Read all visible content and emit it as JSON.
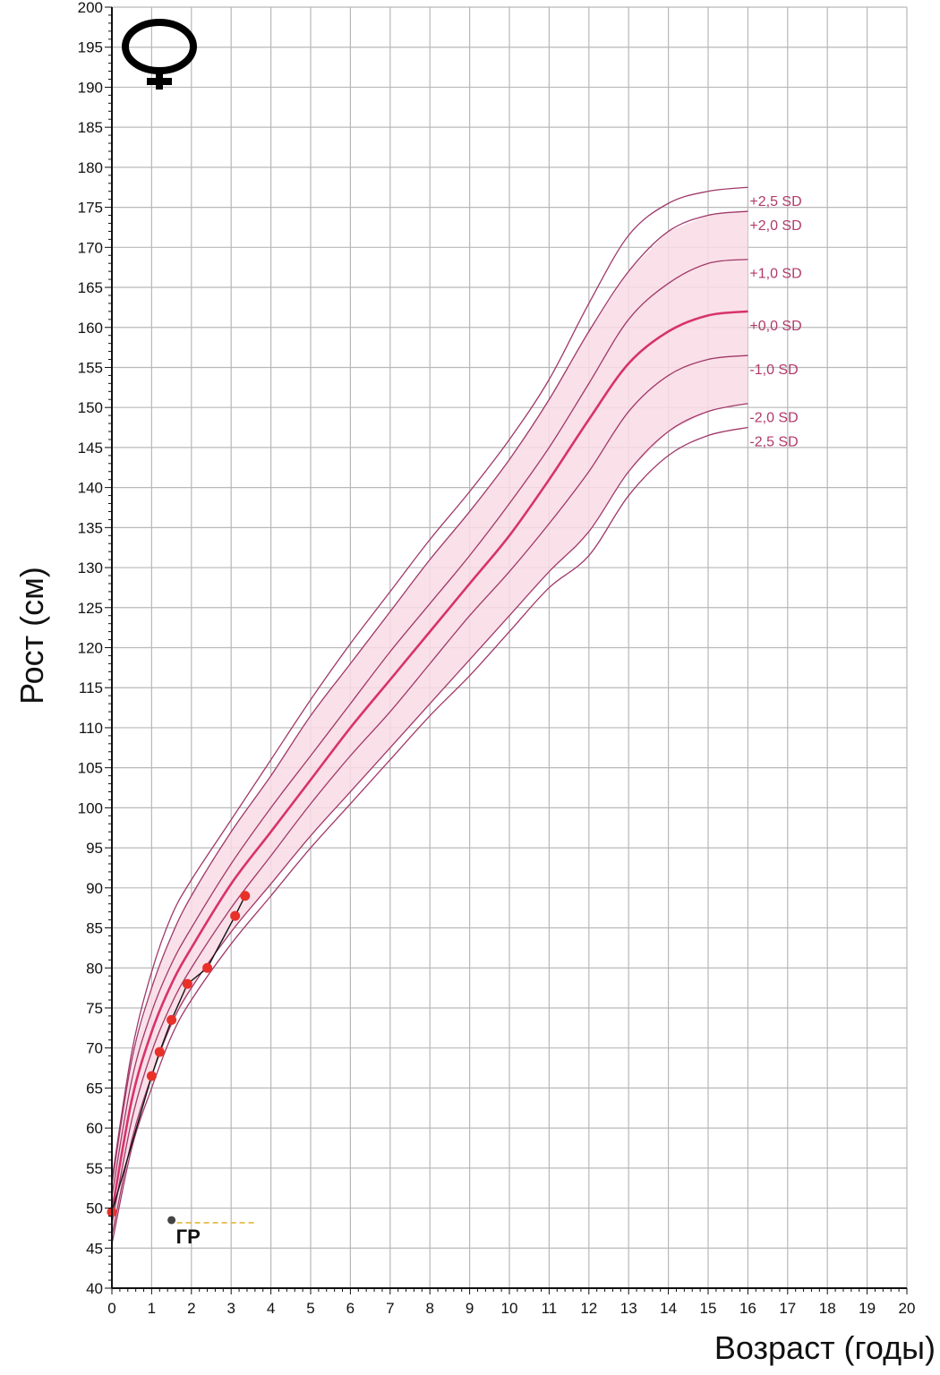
{
  "chart_data": {
    "type": "line",
    "title": "",
    "sex_symbol": "female-symbol",
    "xlabel": "Возраст (годы)",
    "ylabel": "Рост (см)",
    "xlim": [
      0,
      20
    ],
    "ylim": [
      40,
      200
    ],
    "x_ticks": [
      "0",
      "1",
      "2",
      "3",
      "4",
      "5",
      "6",
      "7",
      "8",
      "9",
      "10",
      "11",
      "12",
      "13",
      "14",
      "15",
      "16",
      "17",
      "18",
      "19",
      "20"
    ],
    "y_ticks": [
      "40",
      "45",
      "50",
      "55",
      "60",
      "65",
      "70",
      "75",
      "80",
      "85",
      "90",
      "95",
      "100",
      "105",
      "110",
      "115",
      "120",
      "125",
      "130",
      "135",
      "140",
      "145",
      "150",
      "155",
      "160",
      "165",
      "170",
      "175",
      "180",
      "185",
      "190",
      "195",
      "200"
    ],
    "grid": true,
    "band": {
      "from_series": "-2,0 SD",
      "to_series": "+2,0 SD",
      "color": "#f9dbe4"
    },
    "series": [
      {
        "name": "+2,5 SD",
        "color": "#a0386a",
        "width": 1.3,
        "x": [
          0,
          0.5,
          1,
          1.5,
          2,
          3,
          4,
          5,
          6,
          7,
          8,
          9,
          10,
          11,
          12,
          13,
          14,
          15,
          16
        ],
        "y": [
          53.5,
          69.5,
          79.5,
          86.5,
          91,
          98.5,
          106,
          113.5,
          120.5,
          127,
          133.5,
          139.5,
          146,
          153.5,
          163,
          171.5,
          175.5,
          177,
          177.5
        ]
      },
      {
        "name": "+2,0 SD",
        "color": "#a0386a",
        "width": 1.3,
        "x": [
          0,
          0.5,
          1,
          1.5,
          2,
          3,
          4,
          5,
          6,
          7,
          8,
          9,
          10,
          11,
          12,
          13,
          14,
          15,
          16
        ],
        "y": [
          53,
          68.5,
          77.5,
          84,
          89,
          97,
          104,
          111.5,
          118,
          124.5,
          131,
          137,
          143.5,
          151,
          159.5,
          167,
          172,
          174,
          174.5
        ]
      },
      {
        "name": "+1,0 SD",
        "color": "#a0386a",
        "width": 1.3,
        "x": [
          0,
          0.5,
          1,
          1.5,
          2,
          3,
          4,
          5,
          6,
          7,
          8,
          9,
          10,
          11,
          12,
          13,
          14,
          15,
          16
        ],
        "y": [
          51.5,
          66,
          74.5,
          80.5,
          85,
          93,
          100,
          106.5,
          113,
          119.5,
          125.5,
          131.5,
          138,
          145,
          153,
          161,
          165.5,
          168,
          168.5
        ]
      },
      {
        "name": "+0,0 SD",
        "color": "#d6336c",
        "width": 2.6,
        "x": [
          0,
          0.5,
          1,
          1.5,
          2,
          3,
          4,
          5,
          6,
          7,
          8,
          9,
          10,
          11,
          12,
          13,
          14,
          15,
          16
        ],
        "y": [
          49.5,
          63.5,
          72,
          78,
          82.5,
          90.5,
          97,
          103.5,
          110,
          116,
          122,
          128,
          134,
          141,
          148.5,
          155.5,
          159.5,
          161.5,
          162
        ]
      },
      {
        "name": "-1,0 SD",
        "color": "#a0386a",
        "width": 1.3,
        "x": [
          0,
          0.5,
          1,
          1.5,
          2,
          3,
          4,
          5,
          6,
          7,
          8,
          9,
          10,
          11,
          12,
          13,
          14,
          15,
          16
        ],
        "y": [
          48,
          61,
          69.5,
          75.5,
          80,
          87.5,
          94,
          100.5,
          106.5,
          112,
          118,
          124,
          129.5,
          135.5,
          142,
          149.5,
          154,
          156,
          156.5
        ]
      },
      {
        "name": "-2,0 SD",
        "color": "#a0386a",
        "width": 1.3,
        "x": [
          0,
          0.5,
          1,
          1.5,
          2,
          3,
          4,
          5,
          6,
          7,
          8,
          9,
          10,
          11,
          12,
          13,
          14,
          15,
          16
        ],
        "y": [
          46.5,
          58.5,
          66.5,
          73,
          77.5,
          84.5,
          90.5,
          96.5,
          102,
          107.5,
          113,
          118.5,
          124,
          129.5,
          134.5,
          142,
          147,
          149.5,
          150.5
        ]
      },
      {
        "name": "-2,5 SD",
        "color": "#a0386a",
        "width": 1.3,
        "x": [
          0,
          0.5,
          1,
          1.5,
          2,
          3,
          4,
          5,
          6,
          7,
          8,
          9,
          10,
          11,
          12,
          13,
          14,
          15,
          16
        ],
        "y": [
          45.5,
          57.5,
          65,
          71.5,
          76,
          83,
          89,
          95,
          100.5,
          106,
          111.5,
          116.5,
          122,
          127.5,
          131.5,
          139,
          144,
          146.5,
          147.5
        ]
      }
    ],
    "patient": {
      "color": "#e8312a",
      "x": [
        0,
        1.0,
        1.2,
        1.5,
        1.9,
        2.4,
        3.1,
        3.35
      ],
      "y": [
        49.5,
        66.5,
        69.5,
        73.5,
        78,
        80,
        86.5,
        89
      ]
    },
    "annotation": {
      "label": "ГР",
      "x": 1.5,
      "y": 48.5,
      "line_to_x": 3.6,
      "line_color": "#e2b63a"
    }
  }
}
